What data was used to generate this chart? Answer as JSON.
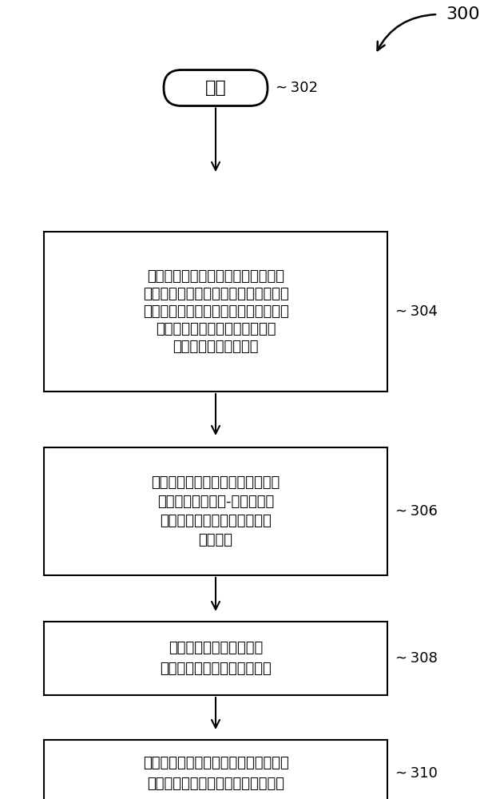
{
  "bg_color": "#ffffff",
  "label_300": "300",
  "label_302": "302",
  "label_304": "304",
  "label_306": "306",
  "label_308": "308",
  "label_310": "310",
  "start_text": "开始",
  "box1_lines": [
    "根据待播音频或声音测试信号来产生",
    "第一时域信号，并且根据音频接收器所",
    "收到的环境声音来产生第二时域信号，",
    "其中该环境声音是对应于该待播",
    "音频或该声音测试信号"
  ],
  "box2_lines": [
    "分别对该第一时域信号以及该第二",
    "时域信号进行时域-频域转换，",
    "以取得第一频域信号以及第二",
    "频域信号"
  ],
  "box3_lines": [
    "根据该第一频域信号与该",
    "第二频域信号来产生频率响应"
  ],
  "box4_lines": [
    "根据该频率响应来调整主动式降噪电路",
    "的主动式降噪系数，以优化降噪效果"
  ],
  "font_size_box": 13,
  "font_size_label": 13,
  "font_size_start": 16,
  "font_size_300": 16,
  "line_color": "#000000",
  "box_edge_color": "#000000",
  "box_fill_color": "#ffffff",
  "text_color": "#000000",
  "fig_width": 6.01,
  "fig_height": 10.0,
  "dpi": 100
}
